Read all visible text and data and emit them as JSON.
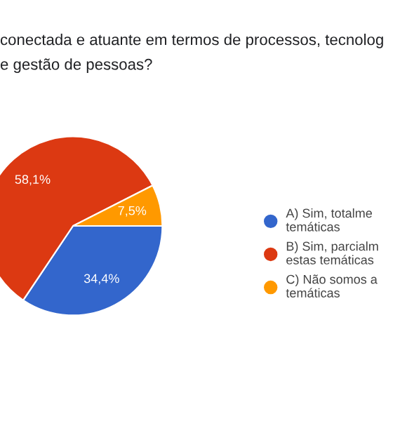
{
  "chart_data": {
    "type": "pie",
    "title": "conectada e atuante em termos de processos, tecnolog\ne gestão de pessoas?",
    "categories": [
      "A) Sim, totalme\ntemáticas",
      "B) Sim, parcialm\nestas temáticas",
      "C) Não somos a\ntemáticas"
    ],
    "values": [
      34.4,
      58.1,
      7.5
    ],
    "value_labels": [
      "34,4%",
      "58,1%",
      "7,5%"
    ],
    "colors": [
      "#3366cc",
      "#dc3912",
      "#ff9900"
    ],
    "legend": "right"
  }
}
